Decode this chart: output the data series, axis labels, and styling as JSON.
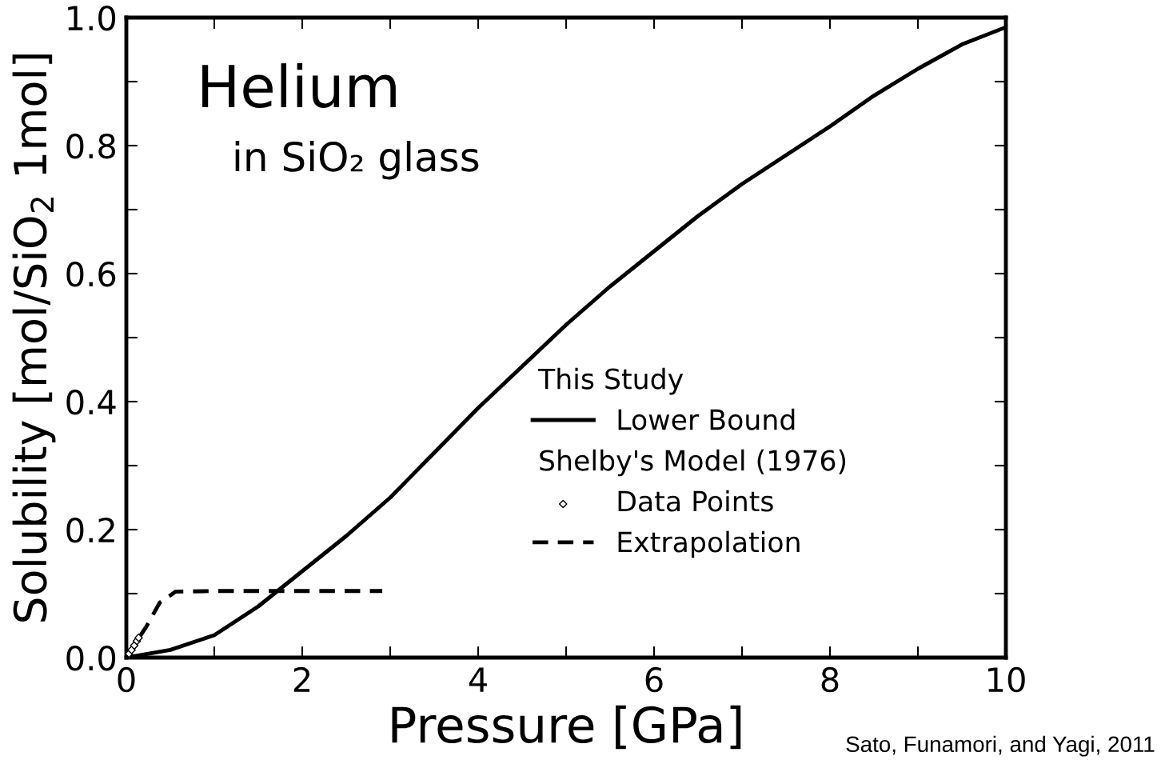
{
  "chart_data": {
    "type": "line",
    "title": "Helium",
    "subtitle": "in SiO₂ glass",
    "xlabel": "Pressure [GPa]",
    "ylabel": "Solubility [mol/SiO$_{2}$ 1mol]",
    "annotations": [
      "This Study",
      "Shelby's Model (1976)",
      "Sato, Funamori, and Yagi, 2011"
    ],
    "series": [
      {
        "name": "Lower Bound",
        "color": "#000000",
        "line_style": "solid",
        "marker": "none",
        "x": [
          0,
          0.5,
          1.0,
          1.5,
          2.0,
          2.5,
          3.0,
          3.5,
          4.0,
          4.5,
          5.0,
          5.5,
          6.0,
          6.5,
          7.0,
          7.5,
          8.0,
          8.5,
          9.0,
          9.5,
          10.0
        ],
        "values": [
          0,
          0.012,
          0.035,
          0.08,
          0.135,
          0.19,
          0.25,
          0.32,
          0.39,
          0.455,
          0.52,
          0.58,
          0.635,
          0.69,
          0.74,
          0.785,
          0.83,
          0.878,
          0.92,
          0.958,
          0.985
        ]
      },
      {
        "name": "Data Points",
        "type": "scatter",
        "color": "#000000",
        "marker": "diamond",
        "x": [
          0.03,
          0.06,
          0.09,
          0.12,
          0.14
        ],
        "values": [
          0.006,
          0.012,
          0.019,
          0.026,
          0.031
        ]
      },
      {
        "name": "Extrapolation",
        "color": "#000000",
        "line_style": "dashed",
        "marker": "none",
        "x": [
          0,
          0.12,
          0.23,
          0.38,
          0.56,
          1.0,
          2.0,
          2.91
        ],
        "values": [
          0,
          0.026,
          0.049,
          0.086,
          0.103,
          0.104,
          0.104,
          0.104
        ]
      }
    ],
    "xlim": [
      0,
      10
    ],
    "ylim": [
      0,
      1.0
    ],
    "xticks": [
      0,
      {
        "value": 1,
        "label": null
      },
      2,
      {
        "value": 3,
        "label": null
      },
      4,
      {
        "value": 5,
        "label": null
      },
      6,
      {
        "value": 7,
        "label": null
      },
      8,
      {
        "value": 9,
        "label": null
      },
      10
    ],
    "yticks": [
      {
        "value": 0,
        "label": "0.0"
      },
      {
        "value": 0.1,
        "label": null
      },
      0.2,
      {
        "value": 0.3,
        "label": null
      },
      0.4,
      {
        "value": 0.5,
        "label": null
      },
      0.6,
      {
        "value": 0.7,
        "label": null
      },
      0.8,
      {
        "value": 0.9,
        "label": null
      },
      {
        "value": 1.0,
        "label": "1.0"
      }
    ],
    "grid": false,
    "legend": "bottom right"
  }
}
